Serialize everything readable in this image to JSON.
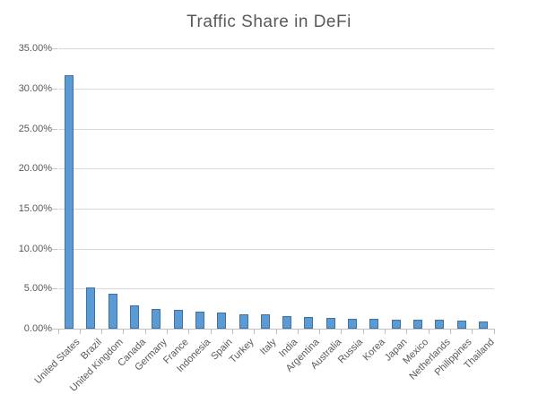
{
  "title": "Traffic Share in DeFi",
  "chart_data": {
    "type": "bar",
    "title": "Traffic Share in DeFi",
    "categories": [
      "United States",
      "Brazil",
      "United Kingdom",
      "Canada",
      "Germany",
      "France",
      "Indonesia",
      "Spain",
      "Turkey",
      "Italy",
      "India",
      "Argentina",
      "Australia",
      "Russia",
      "Korea",
      "Japan",
      "Mexico",
      "Netherlands",
      "Philippines",
      "Thailand"
    ],
    "values": [
      31.7,
      5.2,
      4.45,
      3.0,
      2.55,
      2.4,
      2.2,
      2.1,
      1.9,
      1.85,
      1.6,
      1.55,
      1.45,
      1.3,
      1.28,
      1.22,
      1.18,
      1.12,
      1.05,
      1.0
    ],
    "value_unit": "%",
    "xlabel": "",
    "ylabel": "",
    "ylim": [
      0,
      35
    ],
    "y_tick_step": 5,
    "y_tick_labels": [
      "0.00%",
      "5.00%",
      "10.00%",
      "15.00%",
      "20.00%",
      "25.00%",
      "30.00%",
      "35.00%"
    ],
    "grid": true,
    "legend": false,
    "colors": {
      "bar_fill": "#5B9BD5",
      "bar_border": "#41719C",
      "gridline": "#D9D9D9",
      "axis_line": "#BFBFBF",
      "title_text": "#595959",
      "axis_text": "#595959",
      "background": "#FFFFFF"
    }
  }
}
